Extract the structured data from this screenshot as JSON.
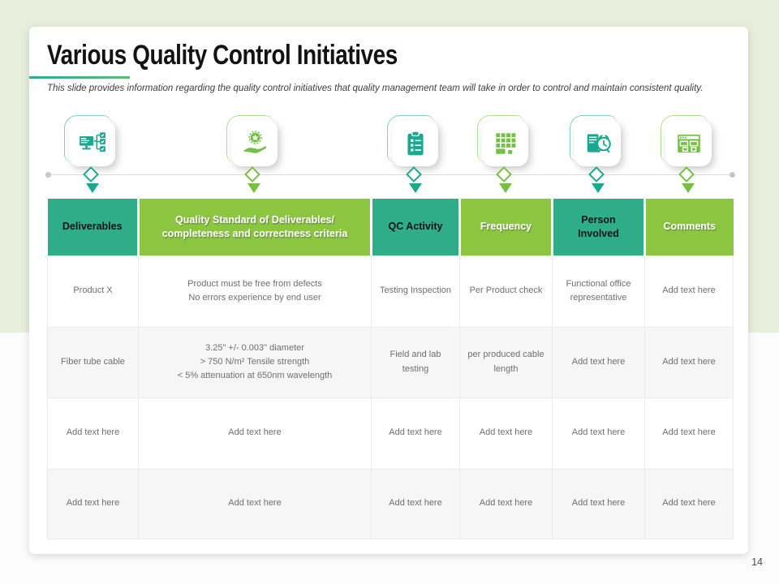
{
  "colors": {
    "teal": "#2fac88",
    "green": "#8cc641",
    "icon_teal": "#1ba88f",
    "icon_green": "#74c044",
    "band": "#e7eedb",
    "row_alt": "#f6f6f6"
  },
  "slide": {
    "title": "Various Quality Control Initiatives",
    "subtitle": "This slide provides information regarding the quality control initiatives that quality management team will take in order to control  and maintain consistent quality.",
    "page_number": "14"
  },
  "timeline": {
    "icons": [
      {
        "name": "monitor-flowchart-icon",
        "accent": "icon_teal"
      },
      {
        "name": "hand-quality-badge-icon",
        "accent": "icon_green"
      },
      {
        "name": "clipboard-checklist-icon",
        "accent": "icon_teal"
      },
      {
        "name": "data-grid-icon",
        "accent": "icon_green"
      },
      {
        "name": "schedule-report-icon",
        "accent": "icon_teal"
      },
      {
        "name": "browser-grid-icon",
        "accent": "icon_green"
      }
    ]
  },
  "table": {
    "headers": [
      {
        "variant": "teal",
        "lines": [
          "Deliverables"
        ]
      },
      {
        "variant": "green",
        "lines": [
          "Quality Standard of Deliverables/",
          "completeness and correctness criteria"
        ]
      },
      {
        "variant": "teal",
        "lines": [
          "QC Activity"
        ]
      },
      {
        "variant": "green",
        "lines": [
          "Frequency"
        ]
      },
      {
        "variant": "teal",
        "lines": [
          "Person",
          "Involved"
        ]
      },
      {
        "variant": "green",
        "lines": [
          "Comments"
        ]
      }
    ],
    "rows": [
      {
        "cells": [
          {
            "lines": [
              "Product X"
            ]
          },
          {
            "lines": [
              "Product must be free from defects",
              "No errors experience by end user"
            ]
          },
          {
            "lines": [
              "Testing Inspection"
            ]
          },
          {
            "lines": [
              "Per Product check"
            ]
          },
          {
            "lines": [
              "Functional office representative"
            ]
          },
          {
            "lines": [
              "Add text here"
            ]
          }
        ]
      },
      {
        "cells": [
          {
            "lines": [
              "Fiber tube cable"
            ]
          },
          {
            "lines": [
              "3.25\" +/- 0.003\" diameter",
              "> 750 N/m² Tensile strength",
              "< 5% attenuation at 650nm wavelength"
            ]
          },
          {
            "lines": [
              "Field and lab testing"
            ]
          },
          {
            "lines": [
              "per produced cable length"
            ]
          },
          {
            "lines": [
              "Add text here"
            ]
          },
          {
            "lines": [
              "Add text here"
            ]
          }
        ]
      },
      {
        "cells": [
          {
            "lines": [
              "Add text here"
            ]
          },
          {
            "lines": [
              "Add text here"
            ]
          },
          {
            "lines": [
              "Add text here"
            ]
          },
          {
            "lines": [
              "Add text here"
            ]
          },
          {
            "lines": [
              "Add text here"
            ]
          },
          {
            "lines": [
              "Add text here"
            ]
          }
        ]
      },
      {
        "cells": [
          {
            "lines": [
              "Add text here"
            ]
          },
          {
            "lines": [
              "Add text here"
            ]
          },
          {
            "lines": [
              "Add text here"
            ]
          },
          {
            "lines": [
              "Add text here"
            ]
          },
          {
            "lines": [
              "Add text here"
            ]
          },
          {
            "lines": [
              "Add text here"
            ]
          }
        ]
      }
    ]
  }
}
